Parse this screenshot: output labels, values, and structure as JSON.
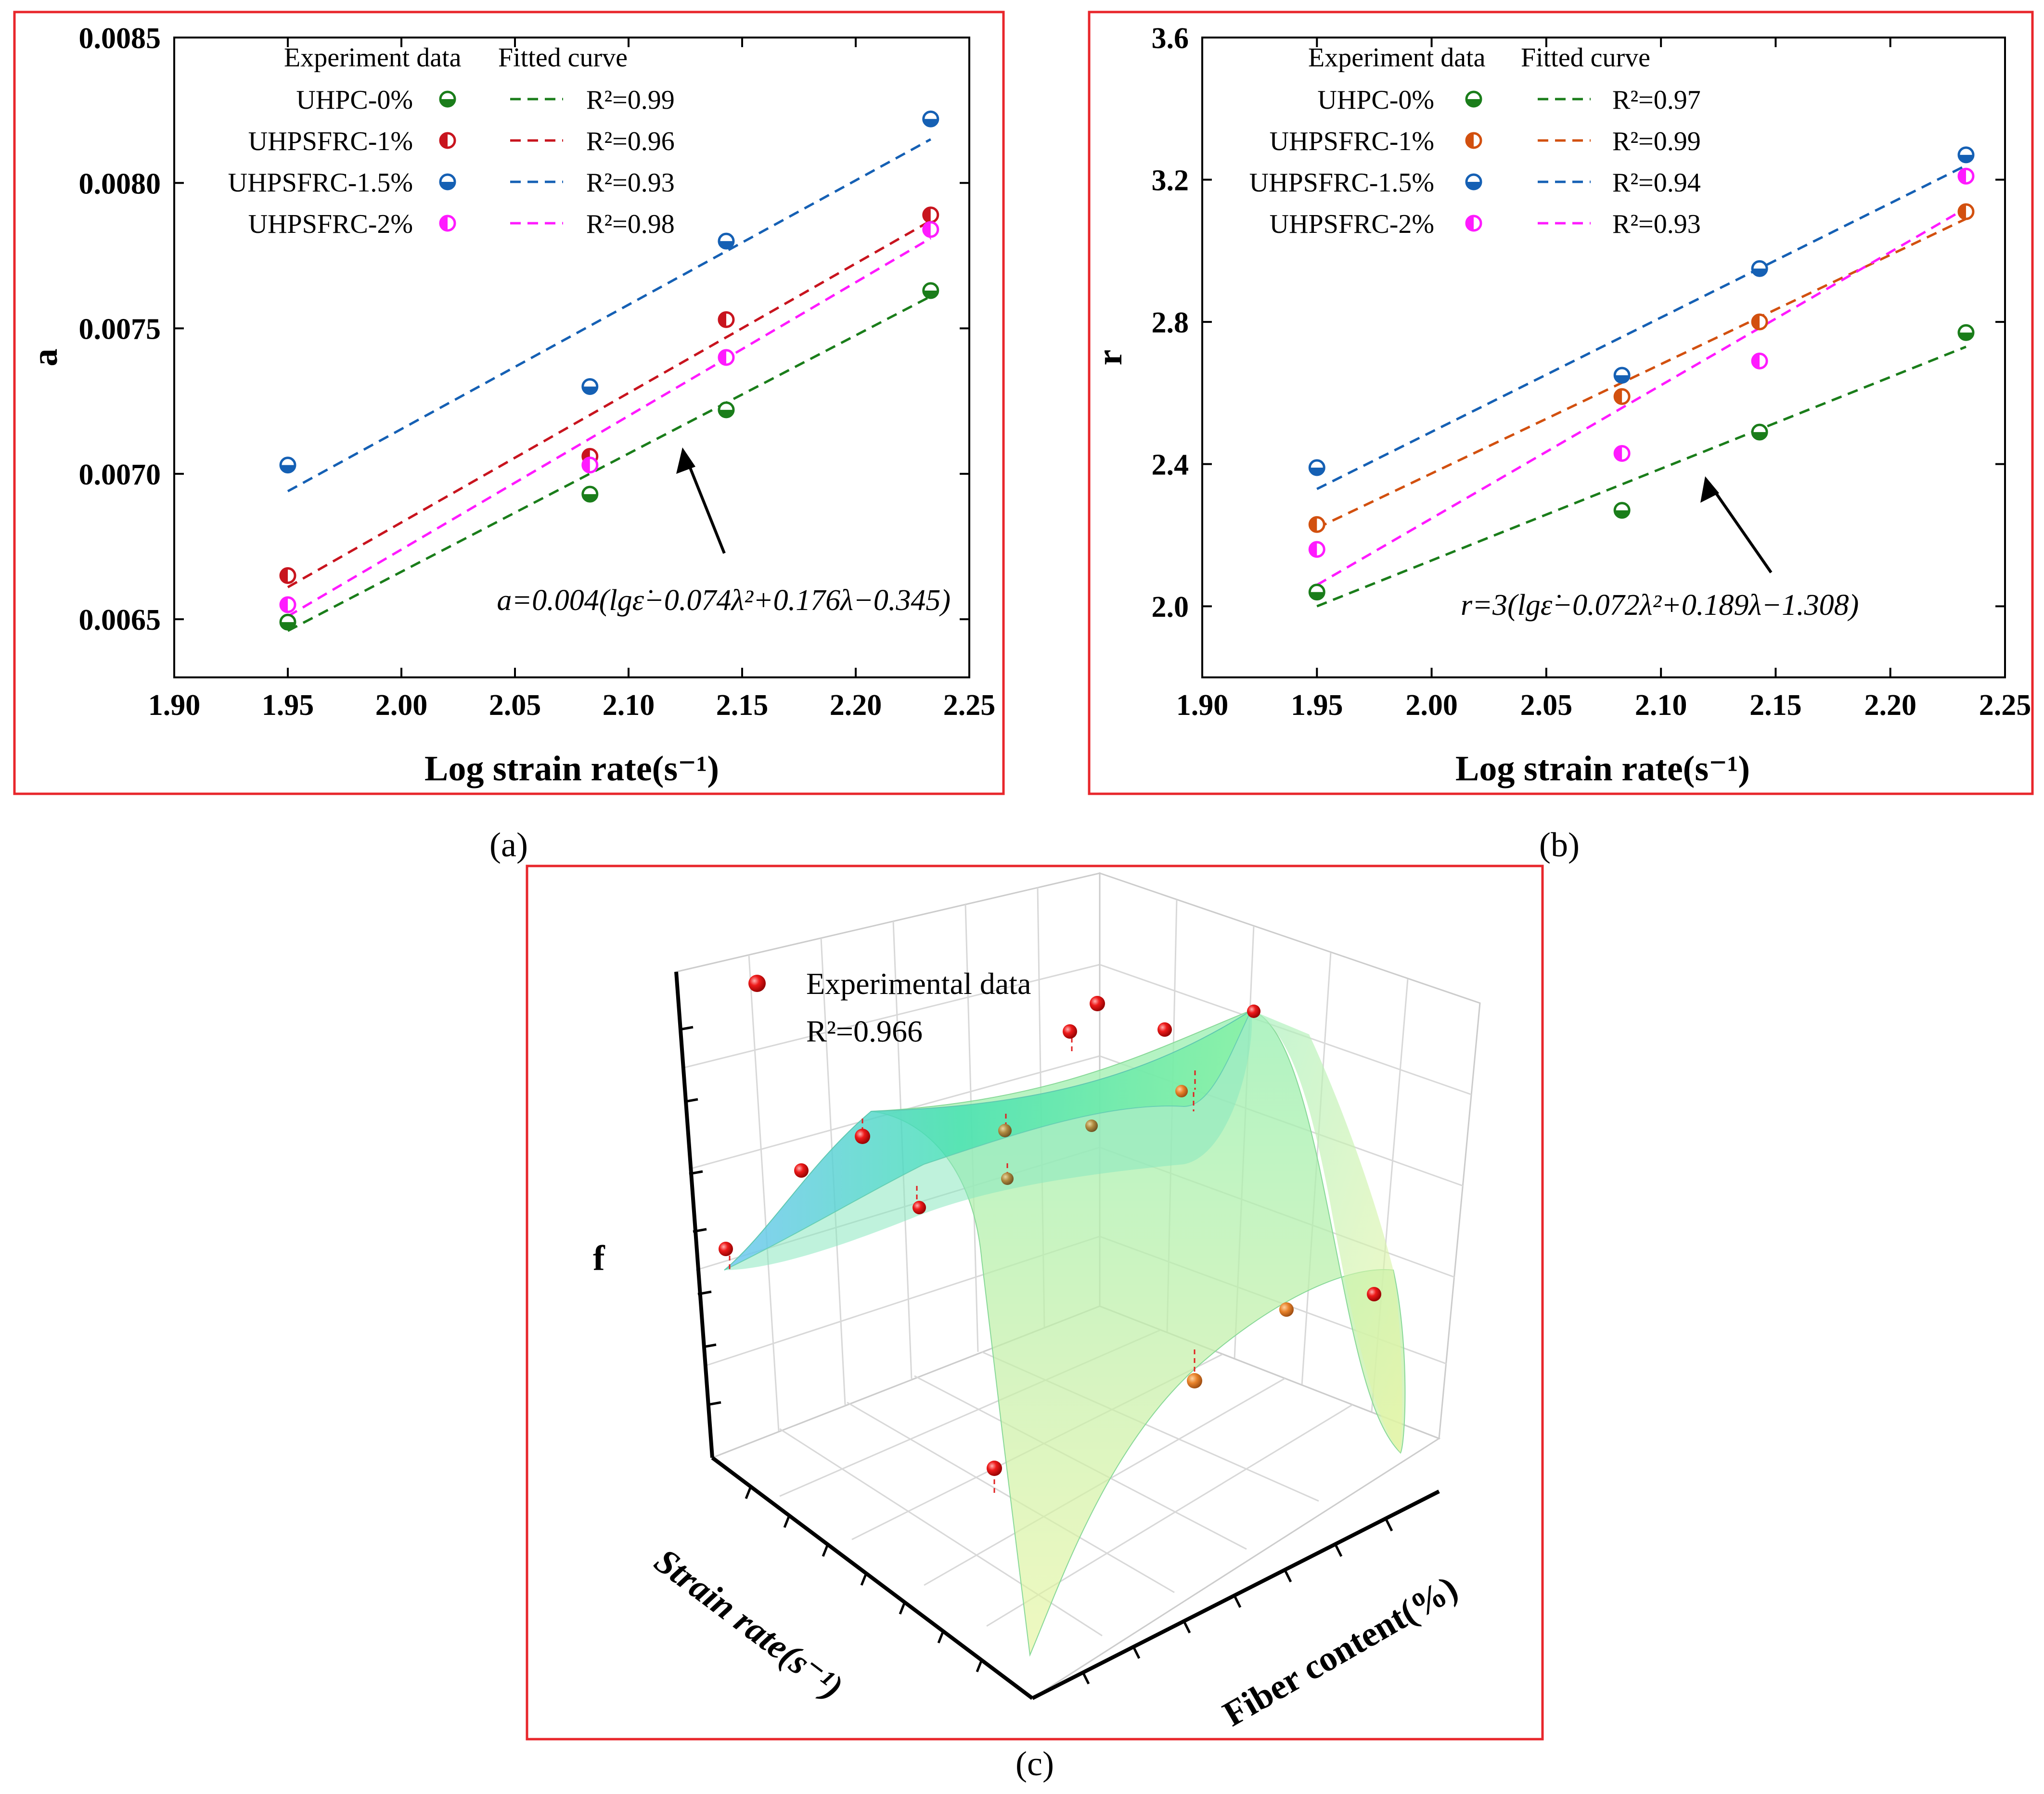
{
  "panels": {
    "a": {
      "caption": "(a)",
      "legend_header_exp": "Experiment data",
      "legend_header_fit": "Fitted curve",
      "equation": "a=0.004(lgε̇−0.074λ²+0.176λ−0.345)"
    },
    "b": {
      "caption": "(b)",
      "legend_header_exp": "Experiment data",
      "legend_header_fit": "Fitted curve",
      "equation": "r=3(lgε̇−0.072λ²+0.189λ−1.308)"
    },
    "c": {
      "caption": "(c)",
      "legend_label": "Experimental data",
      "r2_label": "R²=0.966",
      "zlabel": "f",
      "xlabel": "Strain rate(s⁻¹)",
      "ylabel": "Fiber content(%)"
    }
  },
  "chart_data": [
    {
      "id": "a",
      "type": "scatter",
      "xlabel": "Log strain rate(s⁻¹)",
      "ylabel": "a",
      "xlim": [
        1.9,
        2.25
      ],
      "ylim": [
        0.0063,
        0.0085
      ],
      "xticks": [
        "1.90",
        "1.95",
        "2.00",
        "2.05",
        "2.10",
        "2.15",
        "2.20",
        "2.25"
      ],
      "yticks": [
        "0.0065",
        "0.0070",
        "0.0075",
        "0.0080",
        "0.0085"
      ],
      "x": [
        1.95,
        2.083,
        2.143,
        2.233
      ],
      "fit_x": [
        1.95,
        2.233
      ],
      "series": [
        {
          "name": "UHPC-0%",
          "color": "#1a7d1a",
          "fit_label": "R²=0.99",
          "values": [
            0.00649,
            0.00693,
            0.00722,
            0.00763
          ],
          "fit": [
            0.00646,
            0.00761
          ]
        },
        {
          "name": "UHPSFRC-1%",
          "color": "#c8141e",
          "fit_label": "R²=0.96",
          "values": [
            0.00665,
            0.00706,
            0.00753,
            0.00789
          ],
          "fit": [
            0.00661,
            0.00787
          ]
        },
        {
          "name": "UHPSFRC-1.5%",
          "color": "#1560b4",
          "fit_label": "R²=0.93",
          "values": [
            0.00703,
            0.0073,
            0.0078,
            0.00822
          ],
          "fit": [
            0.00694,
            0.00815
          ]
        },
        {
          "name": "UHPSFRC-2%",
          "color": "#ff1aff",
          "fit_label": "R²=0.98",
          "values": [
            0.00655,
            0.00703,
            0.0074,
            0.00784
          ],
          "fit": [
            0.00651,
            0.00781
          ]
        }
      ]
    },
    {
      "id": "b",
      "type": "scatter",
      "xlabel": "Log strain rate(s⁻¹)",
      "ylabel": "r",
      "xlim": [
        1.9,
        2.25
      ],
      "ylim": [
        1.8,
        3.6
      ],
      "xticks": [
        "1.90",
        "1.95",
        "2.00",
        "2.05",
        "2.10",
        "2.15",
        "2.20",
        "2.25"
      ],
      "yticks": [
        "2.0",
        "2.4",
        "2.8",
        "3.2",
        "3.6"
      ],
      "x": [
        1.95,
        2.083,
        2.143,
        2.233
      ],
      "fit_x": [
        1.95,
        2.233
      ],
      "series": [
        {
          "name": "UHPC-0%",
          "color": "#1a7d1a",
          "fit_label": "R²=0.97",
          "values": [
            2.04,
            2.27,
            2.49,
            2.77
          ],
          "fit": [
            2.0,
            2.73
          ]
        },
        {
          "name": "UHPSFRC-1%",
          "color": "#d2500f",
          "fit_label": "R²=0.99",
          "values": [
            2.23,
            2.59,
            2.8,
            3.11
          ],
          "fit": [
            2.22,
            3.09
          ]
        },
        {
          "name": "UHPSFRC-1.5%",
          "color": "#1560b4",
          "fit_label": "R²=0.94",
          "values": [
            2.39,
            2.65,
            2.95,
            3.27
          ],
          "fit": [
            2.33,
            3.24
          ]
        },
        {
          "name": "UHPSFRC-2%",
          "color": "#ff1aff",
          "fit_label": "R²=0.93",
          "values": [
            2.16,
            2.43,
            2.69,
            3.21
          ],
          "fit": [
            2.06,
            3.12
          ]
        }
      ]
    },
    {
      "id": "c",
      "type": "scatter",
      "title": "",
      "xlabel": "Strain rate(s⁻¹)",
      "ylabel": "Fiber content(%)",
      "zlabel": "f",
      "legend": [
        "Experimental data"
      ],
      "annotation": "R²=0.966"
    }
  ]
}
